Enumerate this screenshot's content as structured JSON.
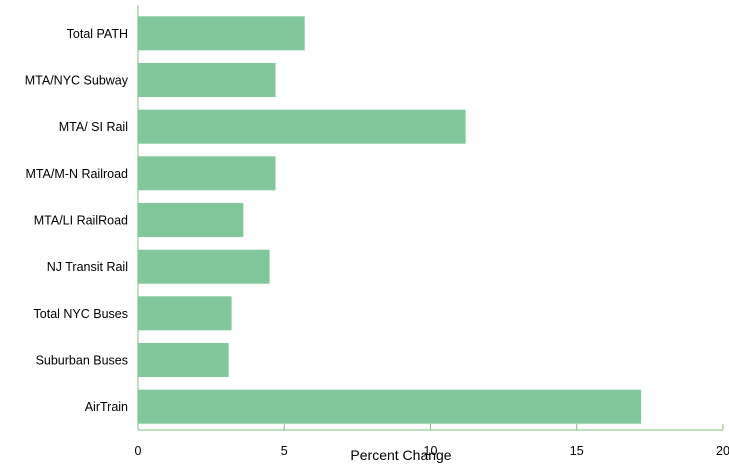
{
  "chart_data": {
    "type": "bar",
    "orientation": "horizontal",
    "categories": [
      "Total PATH",
      "MTA/NYC Subway",
      "MTA/ SI Rail",
      "MTA/M-N Railroad",
      "MTA/LI RailRoad",
      "NJ Transit Rail",
      "Total NYC Buses",
      "Suburban Buses",
      "AirTrain"
    ],
    "values": [
      5.7,
      4.7,
      11.2,
      4.7,
      3.6,
      4.5,
      3.2,
      3.1,
      17.2
    ],
    "xlabel": "Percent Change",
    "ylabel": "",
    "xlim": [
      0,
      20
    ],
    "xticks": [
      0,
      5,
      10,
      15,
      20
    ],
    "xtick_labels": [
      "0",
      "5",
      "10",
      "15",
      "20"
    ],
    "grid": false,
    "legend": "none",
    "colors": {
      "bar": "#82c79b",
      "axis": "#7fbf7f",
      "text": "#000000"
    }
  }
}
